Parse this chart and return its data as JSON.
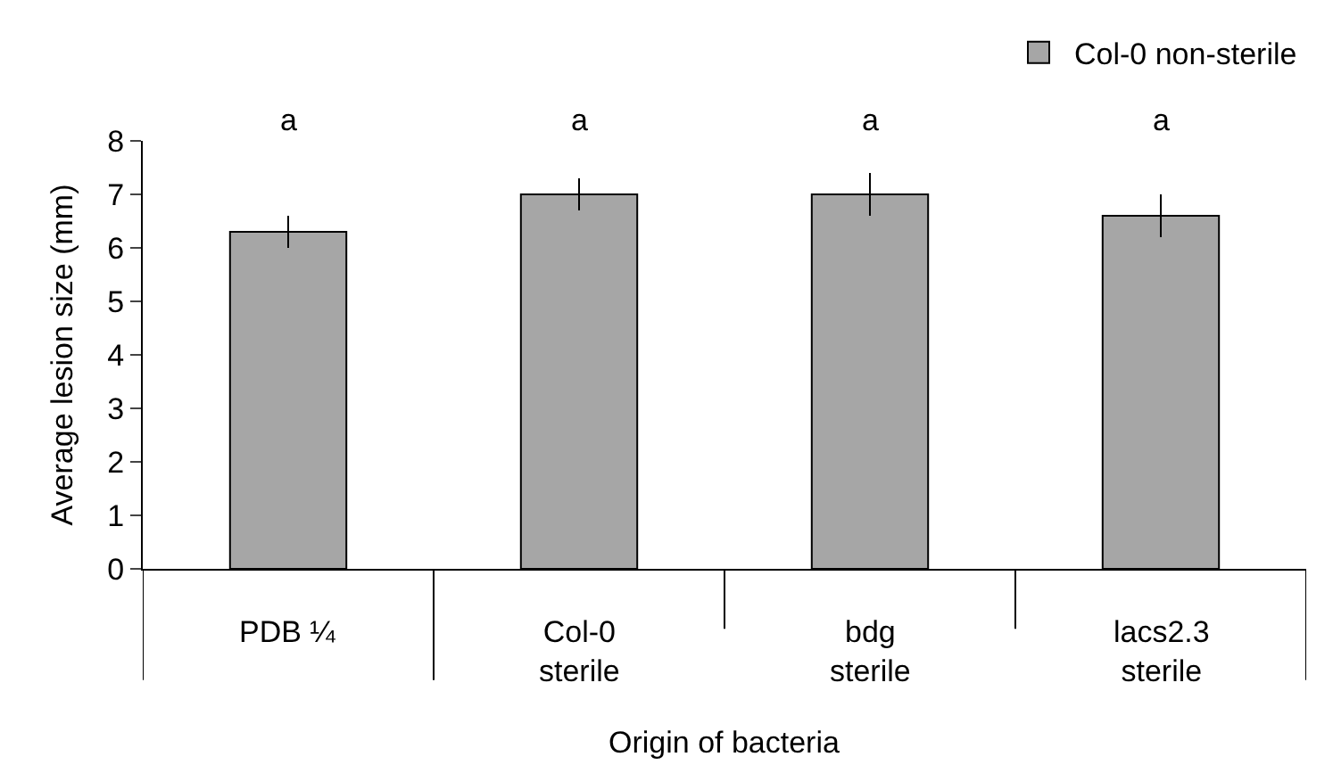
{
  "chart_data": {
    "type": "bar",
    "categories": [
      "PDB ¼",
      "Col-0\nsterile",
      "bdg\nsterile",
      "lacs2.3\nsterile"
    ],
    "series": [
      {
        "name": "Col-0 non-sterile",
        "color": "#a6a6a6",
        "values": [
          6.3,
          7.0,
          7.0,
          6.6
        ],
        "errors": [
          0.3,
          0.3,
          0.4,
          0.4
        ]
      }
    ],
    "xlabel": "Origin of bacteria",
    "ylabel": "Average lesion size (mm)",
    "ylim": [
      0,
      8
    ],
    "yticks": [
      0,
      1,
      2,
      3,
      4,
      5,
      6,
      7,
      8
    ],
    "annotations": [
      "a",
      "a",
      "a",
      "a"
    ],
    "legend": "top right"
  }
}
